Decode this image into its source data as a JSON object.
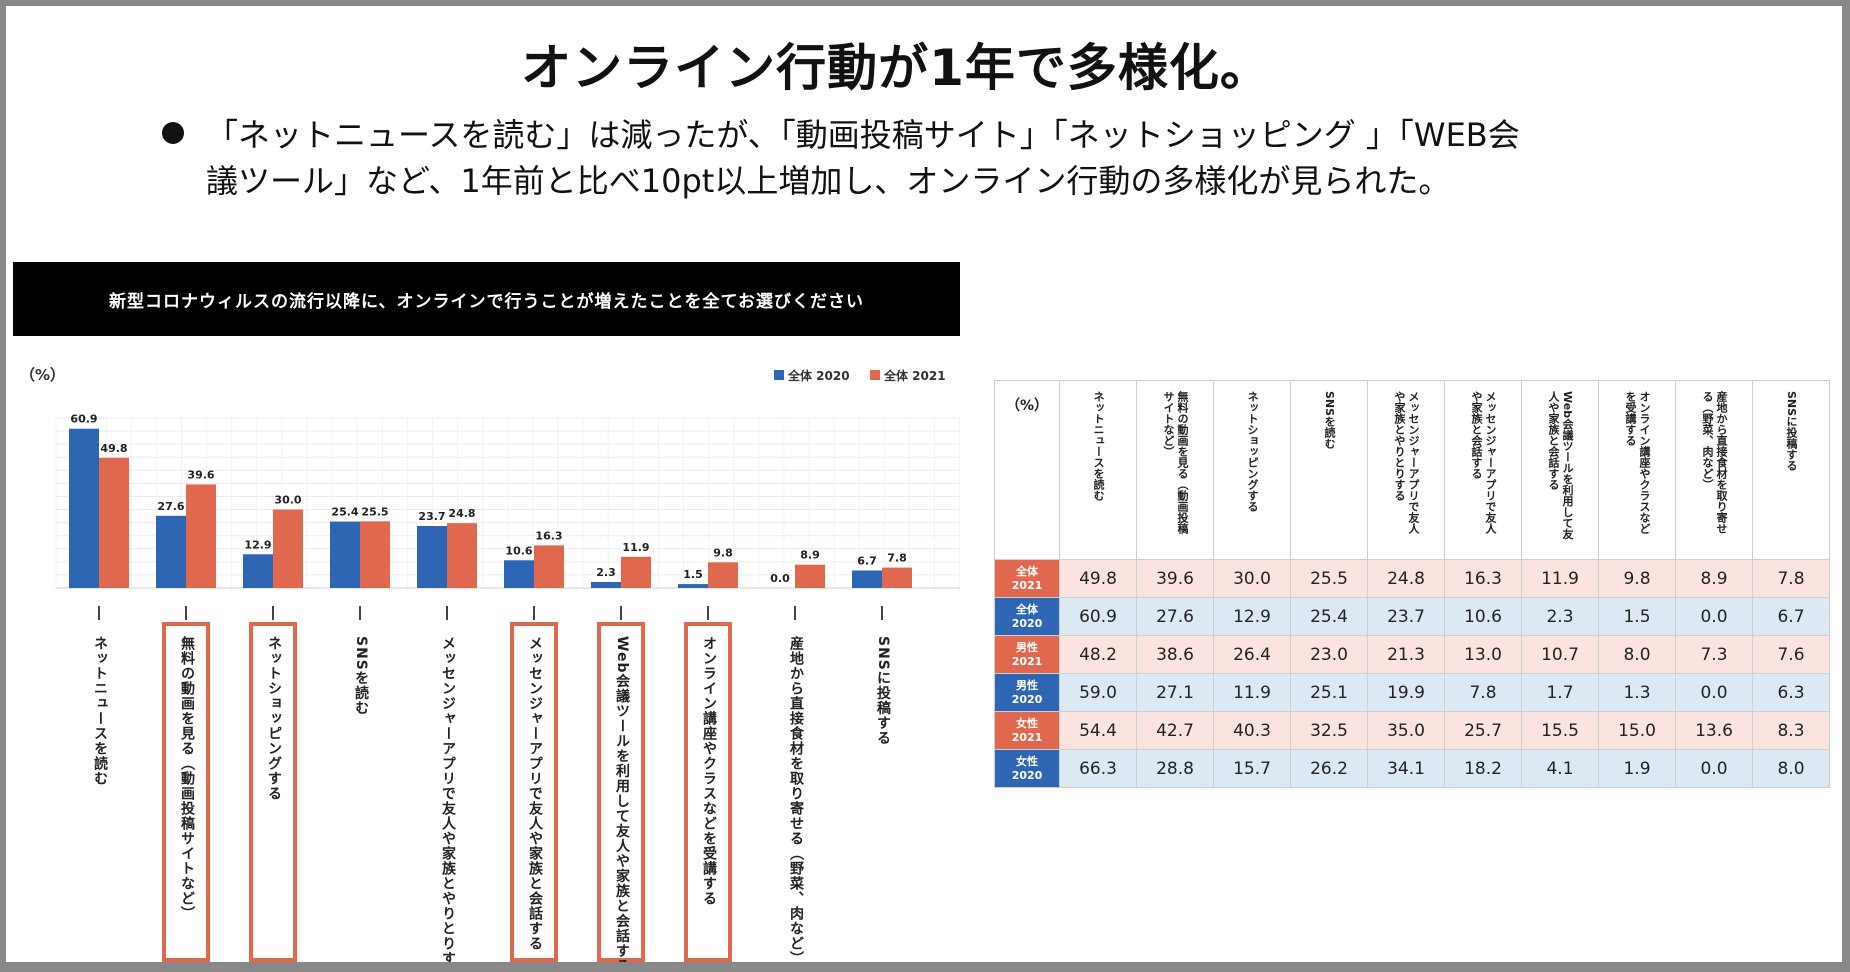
{
  "slide": {
    "title": "オンライン行動が1年で多様化。",
    "bullet_line_1": "「ネットニュースを読む」は減ったが、「動画投稿サイト」「ネットショッピング 」「WEB会",
    "bullet_line_2": "議ツール」など、1年前と比べ10pt以上増加し、オンライン行動の多様化が見られた。"
  },
  "chart_data": {
    "type": "bar",
    "title": "新型コロナウィルスの流行以降に、オンラインで行うことが増えたことを全てお選びください",
    "unit_label": "（%）",
    "colors": {
      "2020": "#2f66b3",
      "2021": "#e0684e",
      "highlight": "#e0684e"
    },
    "legend_position": "top-right",
    "grid": true,
    "ylim": [
      0,
      65
    ],
    "categories": [
      "ネットニュースを読む",
      "無料の動画を見る（動画投稿サイトなど）",
      "ネットショッピングする",
      "SNSを読む",
      "メッセンジャーアプリで友人や家族とやりとりする",
      "メッセンジャーアプリで友人や家族と会話する",
      "Web会議ツールを利用して友人や家族と会話する",
      "オンライン講座やクラスなどを受講する",
      "産地から直接食材を取り寄せる（野菜、肉など）",
      "SNSに投稿する"
    ],
    "highlighted": [
      false,
      true,
      true,
      false,
      false,
      true,
      true,
      true,
      false,
      false
    ],
    "series": [
      {
        "name": "全体 2020",
        "values": [
          60.9,
          27.6,
          12.9,
          25.4,
          23.7,
          10.6,
          2.3,
          1.5,
          0.0,
          6.7
        ]
      },
      {
        "name": "全体 2021",
        "values": [
          49.8,
          39.6,
          30.0,
          25.5,
          24.8,
          16.3,
          11.9,
          9.8,
          8.9,
          7.8
        ]
      }
    ],
    "value_labels": [
      [
        "60.9",
        "27.6",
        "12.9",
        "25.4",
        "23.7",
        "10.6",
        "2.3",
        "1.5",
        "0.0",
        "6.7"
      ],
      [
        "49.8",
        "39.6",
        "30.0",
        "25.5",
        "24.8",
        "16.3",
        "11.9",
        "9.8",
        "8.9",
        "7.8"
      ]
    ]
  },
  "table": {
    "corner": "（%）",
    "headers": [
      "ネットニュースを読む",
      "無料の動画を見る（動画投稿サイトなど）",
      "ネットショッピングする",
      "SNSを読む",
      "メッセンジャーアプリで友人や家族とやりとりする",
      "メッセンジャーアプリで友人や家族と会話する",
      "Web会議ツールを利用して友人や家族と会話する",
      "オンライン講座やクラスなどを受講する",
      "産地から直接食材を取り寄せる（野菜、肉など）",
      "SNSに投稿する"
    ],
    "rows": [
      {
        "group": "全体",
        "year": "2021",
        "values": [
          "49.8",
          "39.6",
          "30.0",
          "25.5",
          "24.8",
          "16.3",
          "11.9",
          "9.8",
          "8.9",
          "7.8"
        ]
      },
      {
        "group": "全体",
        "year": "2020",
        "values": [
          "60.9",
          "27.6",
          "12.9",
          "25.4",
          "23.7",
          "10.6",
          "2.3",
          "1.5",
          "0.0",
          "6.7"
        ]
      },
      {
        "group": "男性",
        "year": "2021",
        "values": [
          "48.2",
          "38.6",
          "26.4",
          "23.0",
          "21.3",
          "13.0",
          "10.7",
          "8.0",
          "7.3",
          "7.6"
        ]
      },
      {
        "group": "男性",
        "year": "2020",
        "values": [
          "59.0",
          "27.1",
          "11.9",
          "25.1",
          "19.9",
          "7.8",
          "1.7",
          "1.3",
          "0.0",
          "6.3"
        ]
      },
      {
        "group": "女性",
        "year": "2021",
        "values": [
          "54.4",
          "42.7",
          "40.3",
          "32.5",
          "35.0",
          "25.7",
          "15.5",
          "15.0",
          "13.6",
          "8.3"
        ]
      },
      {
        "group": "女性",
        "year": "2020",
        "values": [
          "66.3",
          "28.8",
          "15.7",
          "26.2",
          "34.1",
          "18.2",
          "4.1",
          "1.9",
          "0.0",
          "8.0"
        ]
      }
    ]
  }
}
